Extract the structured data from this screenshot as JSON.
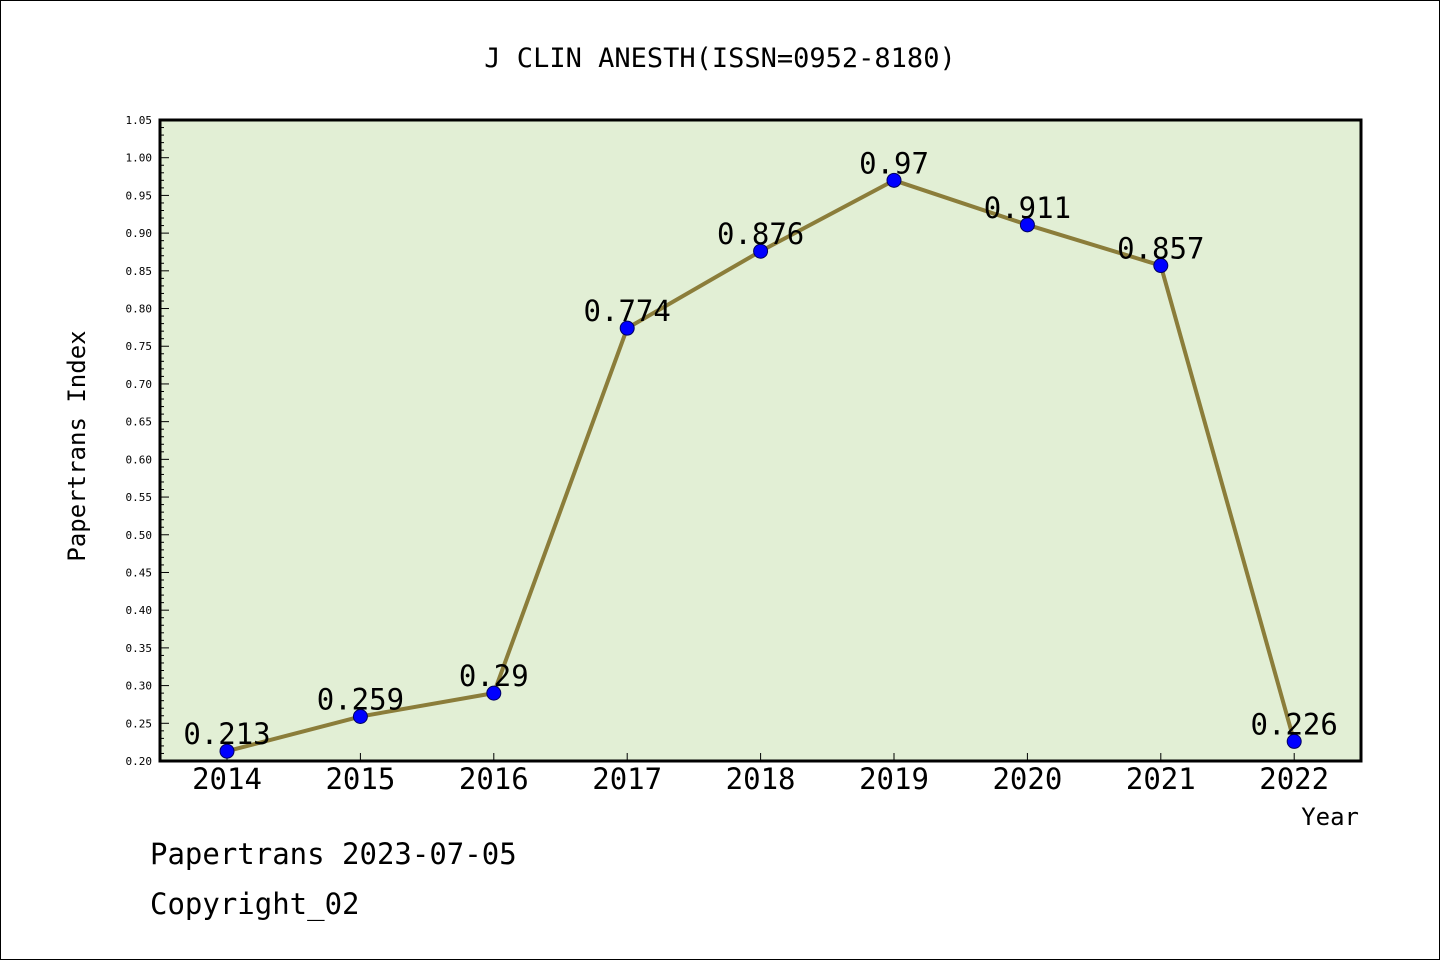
{
  "chart_data": {
    "type": "line",
    "title": "J CLIN ANESTH(ISSN=0952-8180)",
    "xlabel": "Year",
    "ylabel": "Papertrans Index",
    "x": [
      "2014",
      "2015",
      "2016",
      "2017",
      "2018",
      "2019",
      "2020",
      "2021",
      "2022"
    ],
    "series": [
      {
        "values": [
          0.213,
          0.259,
          0.29,
          0.774,
          0.876,
          0.97,
          0.911,
          0.857,
          0.226
        ],
        "labels": [
          "0.213",
          "0.259",
          "0.29",
          "0.774",
          "0.876",
          "0.97",
          "0.911",
          "0.857",
          "0.226"
        ],
        "line_color": "#8B7D3A",
        "marker_color": "#0000FF"
      }
    ],
    "ylim": [
      0.2,
      1.05
    ],
    "yticks": [
      "0.20",
      "0.25",
      "0.30",
      "0.35",
      "0.40",
      "0.45",
      "0.50",
      "0.55",
      "0.60",
      "0.65",
      "0.70",
      "0.75",
      "0.80",
      "0.85",
      "0.90",
      "0.95",
      "1.00",
      "1.05"
    ],
    "grid": false,
    "plot_background": "#E2EFD5"
  },
  "footer": {
    "line1": "Papertrans 2023-07-05",
    "line2": "Copyright_02"
  }
}
